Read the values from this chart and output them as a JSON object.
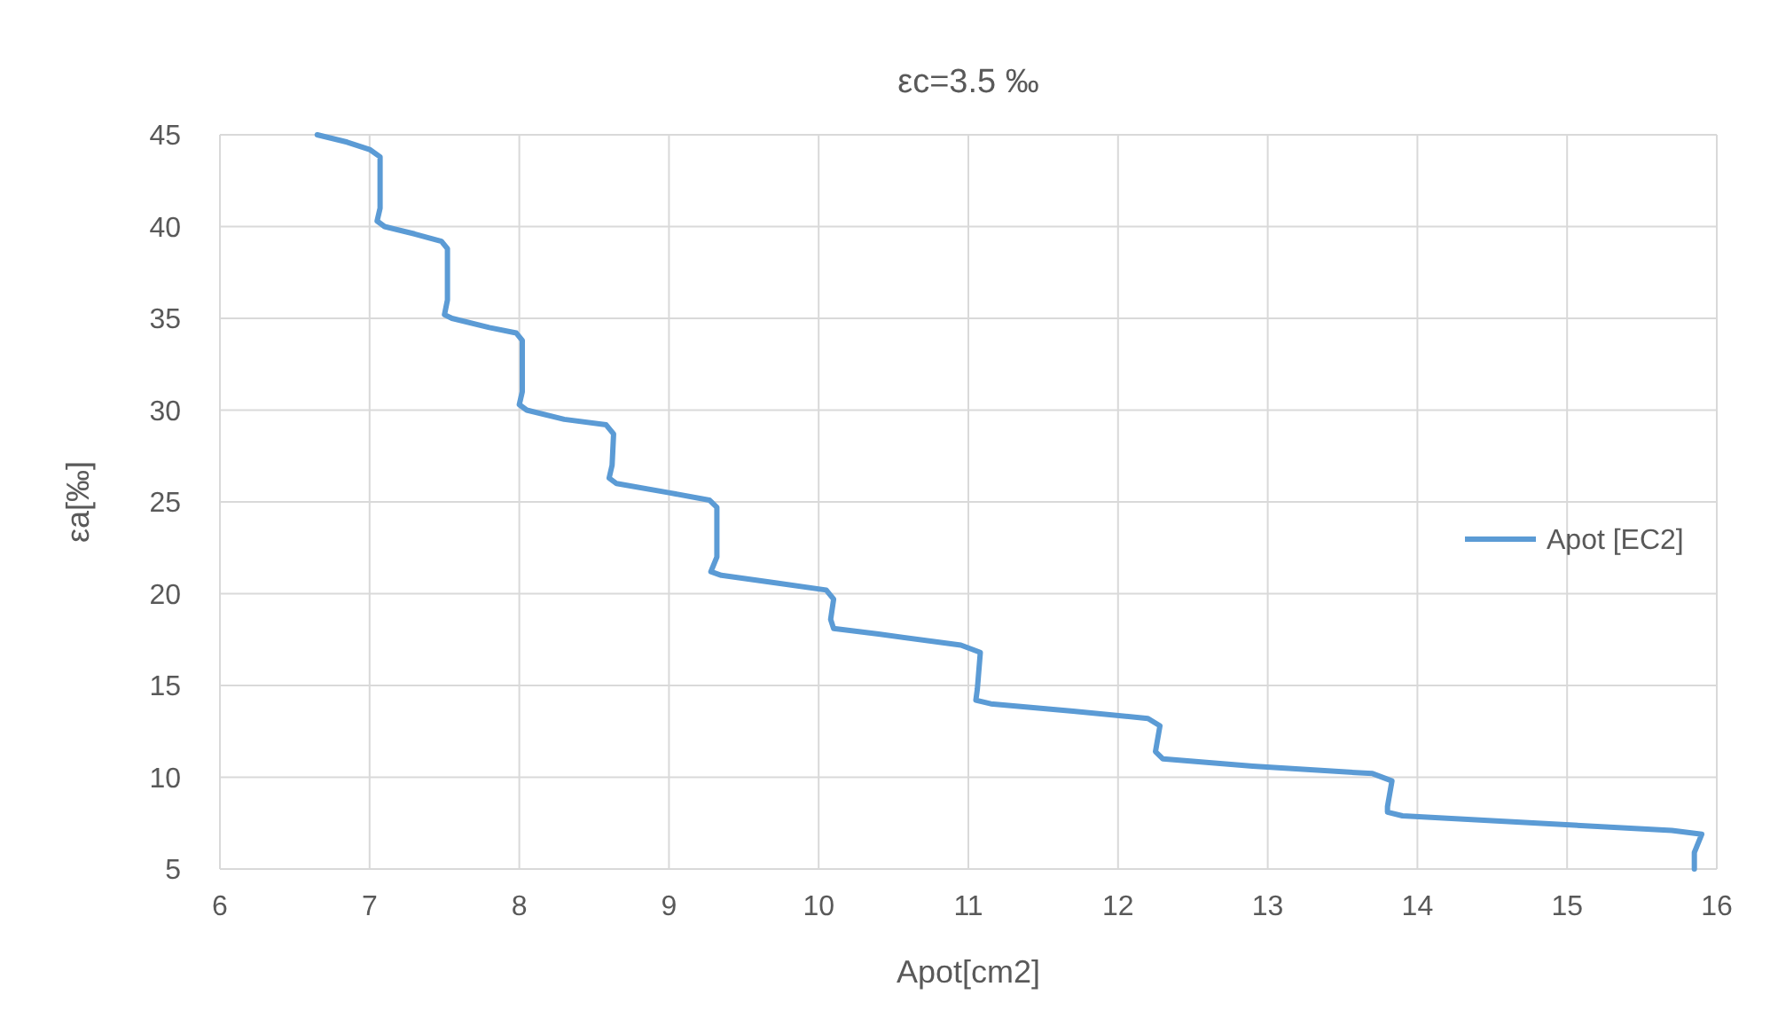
{
  "chart_data": {
    "type": "line",
    "title": "εc=3.5 ‰",
    "xlabel": "Apot[cm2]",
    "ylabel": "εa[‰]",
    "xlim": [
      6,
      16
    ],
    "xticks": [
      6,
      7,
      8,
      9,
      10,
      11,
      12,
      13,
      14,
      15,
      16
    ],
    "ylim": [
      5,
      45
    ],
    "yticks": [
      5,
      10,
      15,
      20,
      25,
      30,
      35,
      40,
      45
    ],
    "grid": true,
    "legend": "right",
    "marker": "none",
    "line_style": "solid",
    "series": [
      {
        "name": "Apot [EC2]",
        "color": "#5b9bd5",
        "x": [
          6.65,
          6.85,
          7.0,
          7.07,
          7.07,
          7.05,
          7.1,
          7.3,
          7.48,
          7.52,
          7.52,
          7.5,
          7.55,
          7.8,
          7.98,
          8.02,
          8.02,
          8.0,
          8.05,
          8.3,
          8.58,
          8.63,
          8.62,
          8.6,
          8.65,
          9.0,
          9.27,
          9.32,
          9.32,
          9.28,
          9.35,
          9.7,
          10.05,
          10.1,
          10.08,
          10.1,
          10.4,
          10.95,
          11.08,
          11.06,
          11.05,
          11.15,
          11.7,
          12.2,
          12.28,
          12.25,
          12.3,
          12.9,
          13.7,
          13.83,
          13.8,
          13.8,
          13.9,
          14.8,
          15.7,
          15.9,
          15.85,
          15.85
        ],
        "values": [
          45,
          44.6,
          44.2,
          43.8,
          41,
          40.3,
          40,
          39.6,
          39.2,
          38.8,
          36,
          35.2,
          35,
          34.5,
          34.2,
          33.8,
          31,
          30.3,
          30,
          29.5,
          29.2,
          28.7,
          27,
          26.3,
          26,
          25.5,
          25.1,
          24.7,
          22,
          21.2,
          21,
          20.6,
          20.2,
          19.7,
          18.6,
          18.1,
          17.8,
          17.2,
          16.8,
          14.8,
          14.2,
          14,
          13.6,
          13.2,
          12.8,
          11.4,
          11,
          10.6,
          10.2,
          9.8,
          8.4,
          8.1,
          7.9,
          7.5,
          7.1,
          6.9,
          5.9,
          5
        ]
      }
    ]
  }
}
